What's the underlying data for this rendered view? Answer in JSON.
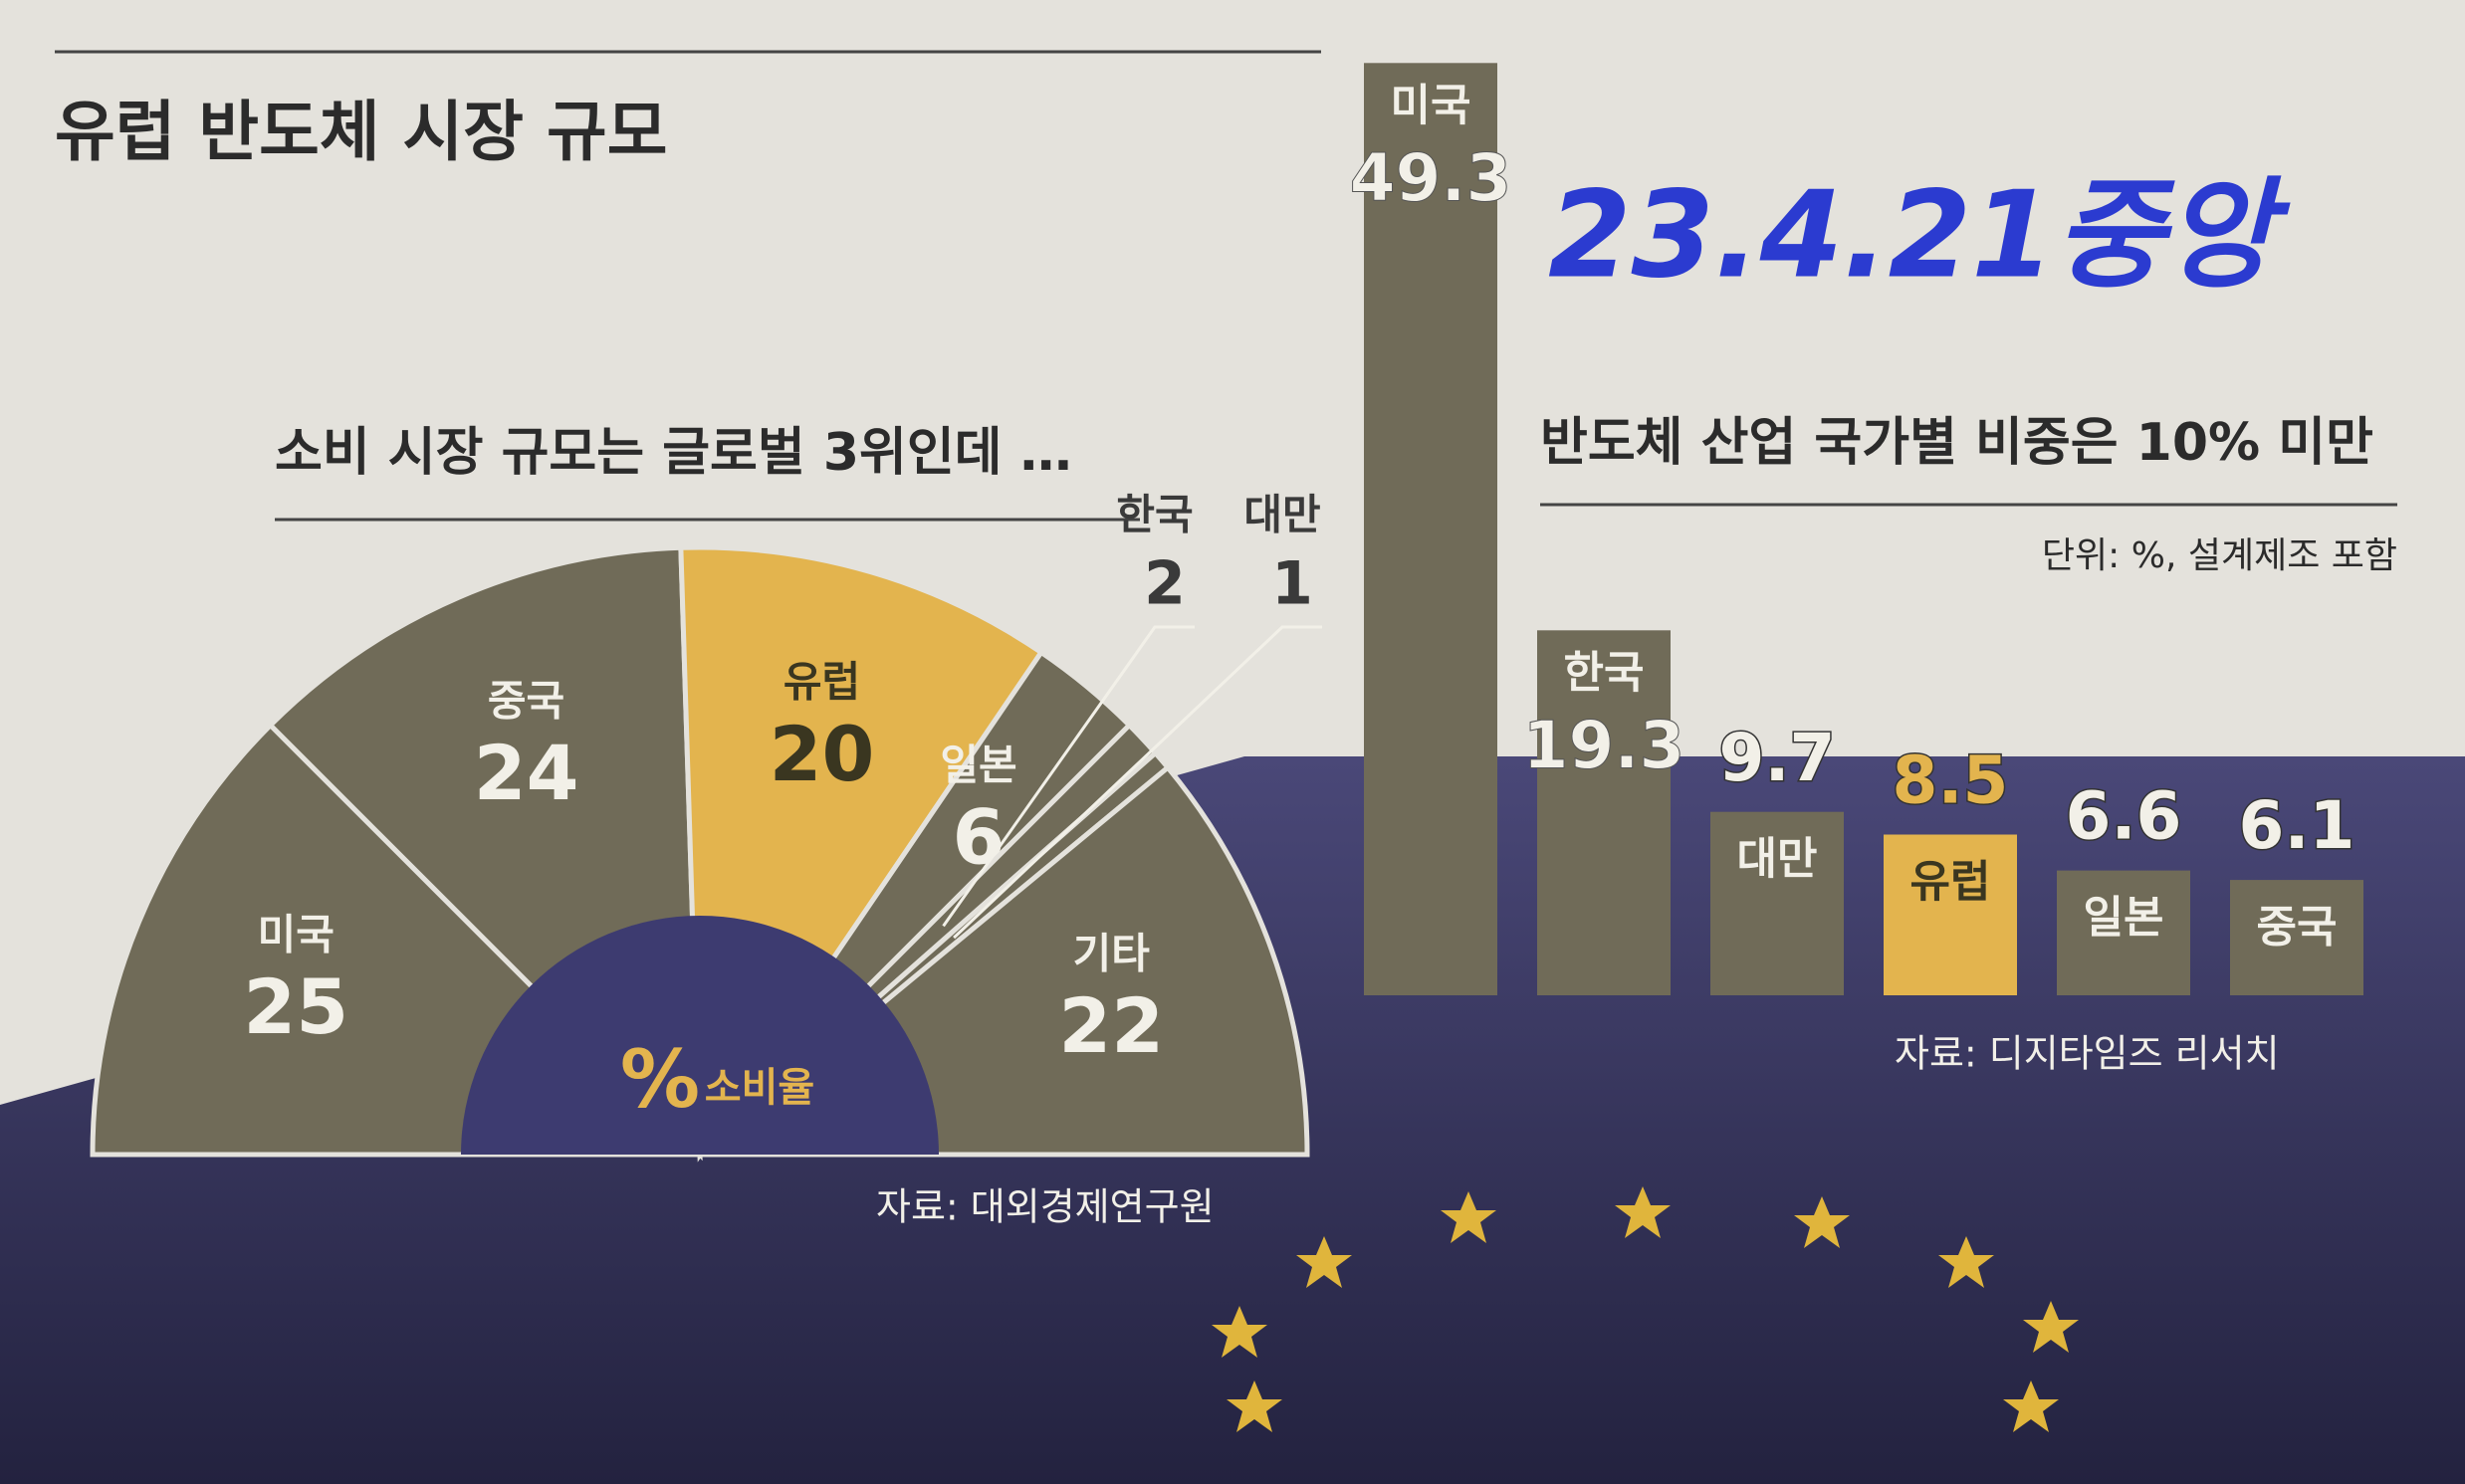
{
  "title": "유럽 반도체 시장 규모",
  "handwritten_note": "23.4.21중앙",
  "chart_data": [
    {
      "type": "pie",
      "title": "소비 시장 규모는 글로벌 3위인데 …",
      "categories": [
        "미국",
        "중국",
        "유럽",
        "일본",
        "한국",
        "대만",
        "기타"
      ],
      "values": [
        25,
        24,
        20,
        6,
        2,
        1,
        22
      ],
      "colors": [
        "#706b58",
        "#706b58",
        "#e3b44e",
        "#706b58",
        "#706b58",
        "#706b58",
        "#706b58"
      ],
      "center_labels": [
        "%",
        "소비율"
      ],
      "source": "자료: 대외경제연구원"
    },
    {
      "type": "bar",
      "title": "반도체 산업 국가별 비중은 10% 미만",
      "unit_note": "단위: %, 설계제조 포함",
      "categories": [
        "미국",
        "한국",
        "대만",
        "유럽",
        "일본",
        "중국"
      ],
      "values": [
        49.3,
        19.3,
        9.7,
        8.5,
        6.6,
        6.1
      ],
      "colors": [
        "#706b58",
        "#706b58",
        "#706b58",
        "#e3b44e",
        "#706b58",
        "#706b58"
      ],
      "source": "자료: 디지타임즈 리서치"
    }
  ]
}
